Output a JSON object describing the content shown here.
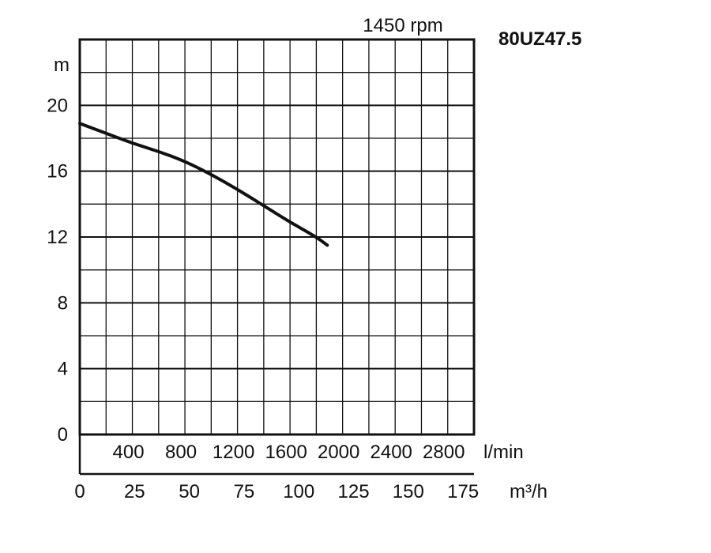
{
  "chart_data": {
    "type": "line",
    "speed_label": "1450 rpm",
    "model": "80UZ47.5",
    "ylabel": "m",
    "ylim": [
      0,
      24
    ],
    "yticks": [
      "0",
      "4",
      "8",
      "12",
      "16",
      "20"
    ],
    "x_lmin": {
      "unit": "l/min",
      "ticks": [
        "400",
        "800",
        "1200",
        "1600",
        "2000",
        "2400",
        "2800"
      ]
    },
    "x_m3h": {
      "unit": "m³/h",
      "ticks": [
        "0",
        "25",
        "50",
        "75",
        "100",
        "125",
        "150",
        "175"
      ]
    },
    "xlim_m3h": [
      0,
      180
    ],
    "grid": true,
    "series": [
      {
        "x": [
          0,
          12,
          24,
          36,
          48,
          60,
          72,
          84,
          96,
          108,
          113
        ],
        "y": [
          18.9,
          18.3,
          17.7,
          17.2,
          16.6,
          15.8,
          14.9,
          13.9,
          12.9,
          12.0,
          11.5
        ]
      }
    ]
  },
  "colors": {
    "ink": "#111111",
    "background": "#ffffff"
  }
}
